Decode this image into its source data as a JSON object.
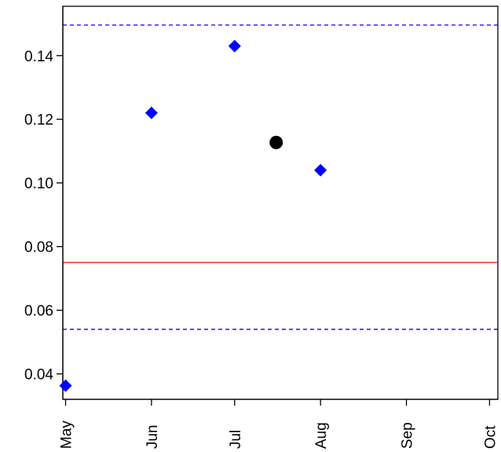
{
  "chart_data": {
    "type": "scatter",
    "title": "",
    "xlabel": "",
    "ylabel": "",
    "x_ticks": [
      "May",
      "Jun",
      "Jul",
      "Aug",
      "Sep",
      "Oct"
    ],
    "y_ticks": [
      "0.04",
      "0.06",
      "0.08",
      "0.10",
      "0.12",
      "0.14"
    ],
    "xlim": [
      "2019-04-30",
      "2019-10-04"
    ],
    "ylim": [
      0.032,
      0.1555
    ],
    "grid": false,
    "series": [
      {
        "marker": "diamond",
        "color": "#0000ff",
        "points": [
          {
            "x": "2019-05-01",
            "y": 0.0363
          },
          {
            "x": "2019-06-01",
            "y": 0.122
          },
          {
            "x": "2019-07-01",
            "y": 0.143
          },
          {
            "x": "2019-08-01",
            "y": 0.104
          }
        ]
      },
      {
        "marker": "circle",
        "color": "#000000",
        "points": [
          {
            "x": "2019-07-16",
            "y": 0.1127
          }
        ]
      }
    ],
    "reference_lines": [
      {
        "y": 0.075,
        "style": "solid",
        "color": "#ff0000"
      },
      {
        "y": 0.1496,
        "style": "dashed",
        "color": "#0000ff"
      },
      {
        "y": 0.054,
        "style": "dashed",
        "color": "#0000ff"
      }
    ]
  }
}
